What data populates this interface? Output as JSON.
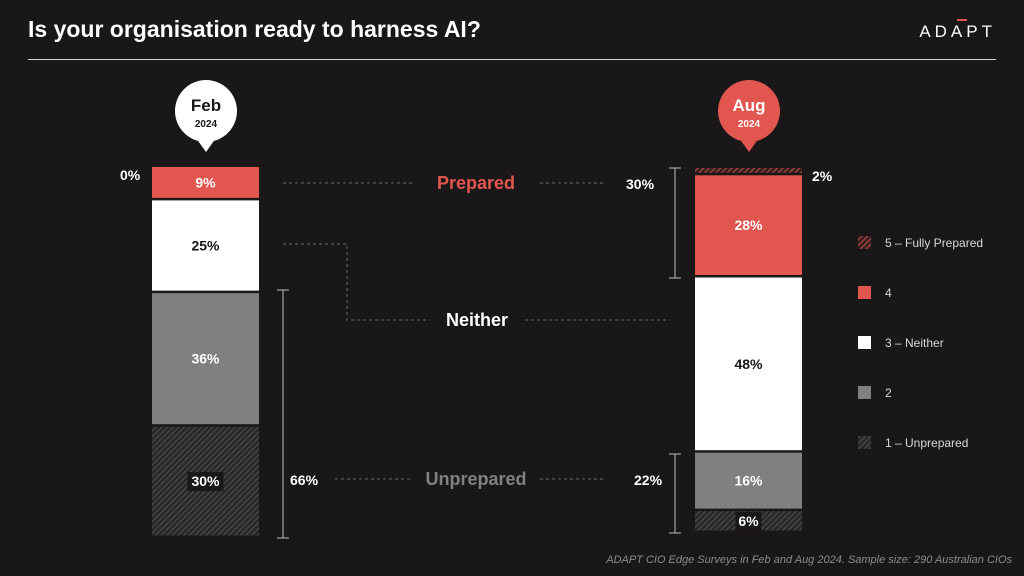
{
  "header": {
    "title": "Is your organisation ready to harness AI?",
    "logo_text": "ADAPT"
  },
  "footnote": "ADAPT CIO Edge Surveys in Feb and Aug 2024. Sample size: 290 Australian CIOs",
  "colors": {
    "background": "#1a1718",
    "level_5": "#e25650",
    "level_4": "#e25650",
    "level_3": "#ffffff",
    "level_2": "#808080",
    "level_1": "#262626",
    "prepared_text": "#e25650",
    "unprepared_text": "#808080"
  },
  "chart_data": {
    "type": "bar",
    "stacked": true,
    "categories": [
      "Feb 2024",
      "Aug 2024"
    ],
    "pins": [
      {
        "month": "Feb",
        "year": "2024"
      },
      {
        "month": "Aug",
        "year": "2024"
      }
    ],
    "series": [
      {
        "name": "1 – Unprepared",
        "values": [
          30,
          6
        ],
        "labels": [
          "30%",
          "6%"
        ]
      },
      {
        "name": "2",
        "values": [
          36,
          16
        ],
        "labels": [
          "36%",
          "16%"
        ]
      },
      {
        "name": "3 – Neither",
        "values": [
          25,
          48
        ],
        "labels": [
          "25%",
          "48%"
        ]
      },
      {
        "name": "4",
        "values": [
          9,
          28
        ],
        "labels": [
          "9%",
          "28%"
        ]
      },
      {
        "name": "5 – Fully Prepared",
        "values": [
          0,
          2
        ],
        "labels": [
          "0%",
          "2%"
        ]
      }
    ],
    "legend": {
      "placement": "right",
      "order": [
        "5 – Fully Prepared",
        "4",
        "3 – Neither",
        "2",
        "1 – Unprepared"
      ]
    },
    "groups": {
      "prepared": {
        "label": "Prepared",
        "values": [
          9,
          30
        ],
        "labels": [
          "9%",
          "30%"
        ]
      },
      "neither": {
        "label": "Neither",
        "values": [
          25,
          48
        ]
      },
      "unprepared": {
        "label": "Unprepared",
        "values": [
          66,
          22
        ],
        "labels": [
          "66%",
          "22%"
        ]
      }
    }
  }
}
